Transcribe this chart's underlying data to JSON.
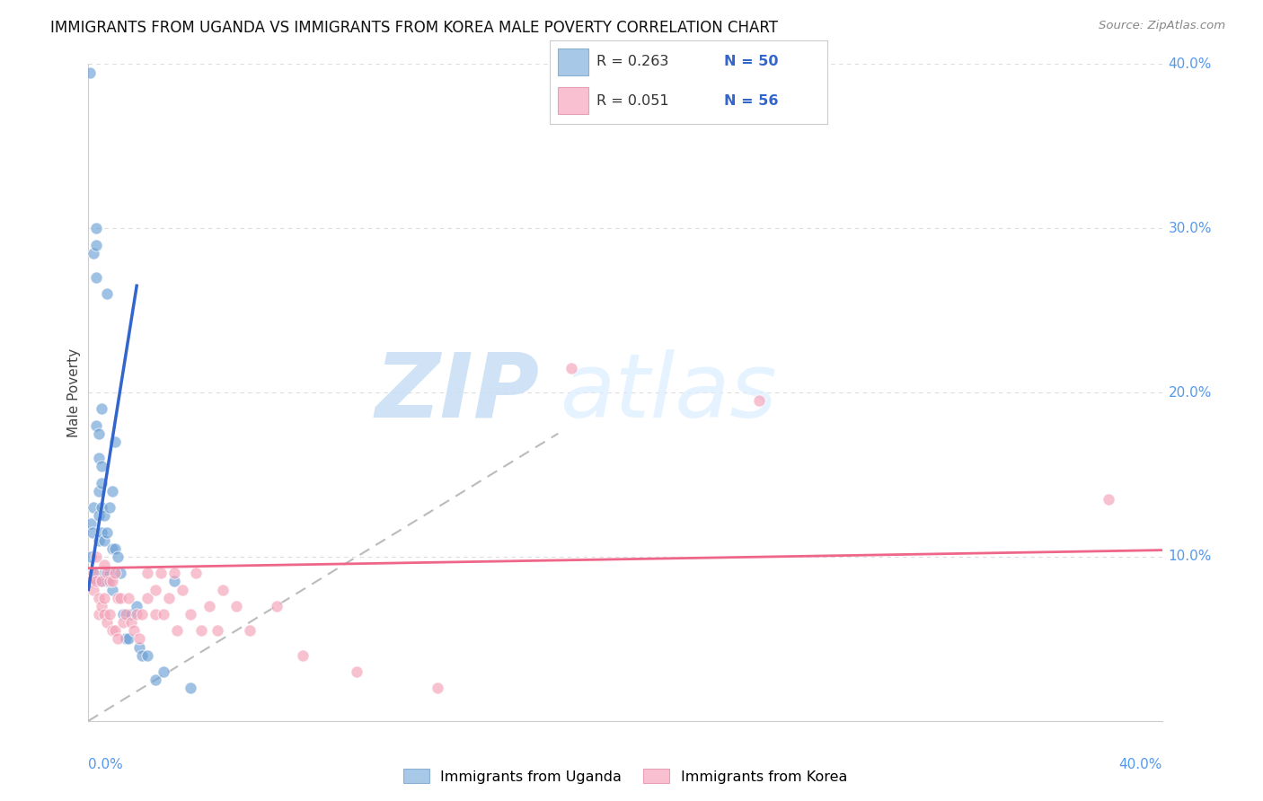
{
  "title": "IMMIGRANTS FROM UGANDA VS IMMIGRANTS FROM KOREA MALE POVERTY CORRELATION CHART",
  "source": "Source: ZipAtlas.com",
  "ylabel": "Male Poverty",
  "uganda_color": "#6ca0d4",
  "korea_color": "#f4a0b8",
  "uganda_line_color": "#3366cc",
  "korea_line_color": "#ee6688",
  "diag_line_color": "#bbbbbb",
  "watermark_zip": "ZIP",
  "watermark_atlas": "atlas",
  "R_uganda": 0.263,
  "N_uganda": 50,
  "R_korea": 0.051,
  "N_korea": 56,
  "xmin": 0.0,
  "xmax": 0.4,
  "ymin": 0.0,
  "ymax": 0.4,
  "background_color": "#ffffff",
  "grid_color": "#dddddd",
  "uganda_x": [
    0.0005,
    0.001,
    0.001,
    0.001,
    0.0015,
    0.002,
    0.002,
    0.002,
    0.003,
    0.003,
    0.003,
    0.003,
    0.004,
    0.004,
    0.004,
    0.004,
    0.004,
    0.005,
    0.005,
    0.005,
    0.005,
    0.005,
    0.005,
    0.006,
    0.006,
    0.006,
    0.007,
    0.007,
    0.007,
    0.008,
    0.008,
    0.009,
    0.009,
    0.009,
    0.01,
    0.01,
    0.011,
    0.012,
    0.013,
    0.014,
    0.015,
    0.016,
    0.018,
    0.019,
    0.02,
    0.022,
    0.025,
    0.028,
    0.032,
    0.038
  ],
  "uganda_y": [
    0.395,
    0.12,
    0.1,
    0.085,
    0.115,
    0.285,
    0.13,
    0.09,
    0.3,
    0.29,
    0.27,
    0.18,
    0.175,
    0.16,
    0.14,
    0.125,
    0.11,
    0.19,
    0.155,
    0.145,
    0.13,
    0.115,
    0.085,
    0.125,
    0.11,
    0.09,
    0.26,
    0.115,
    0.085,
    0.13,
    0.09,
    0.14,
    0.105,
    0.08,
    0.17,
    0.105,
    0.1,
    0.09,
    0.065,
    0.05,
    0.05,
    0.065,
    0.07,
    0.045,
    0.04,
    0.04,
    0.025,
    0.03,
    0.085,
    0.02
  ],
  "korea_x": [
    0.001,
    0.002,
    0.002,
    0.003,
    0.003,
    0.004,
    0.004,
    0.005,
    0.005,
    0.006,
    0.006,
    0.006,
    0.007,
    0.007,
    0.008,
    0.008,
    0.009,
    0.009,
    0.01,
    0.01,
    0.011,
    0.011,
    0.012,
    0.013,
    0.014,
    0.015,
    0.016,
    0.017,
    0.018,
    0.019,
    0.02,
    0.022,
    0.022,
    0.025,
    0.025,
    0.027,
    0.028,
    0.03,
    0.032,
    0.033,
    0.035,
    0.038,
    0.04,
    0.042,
    0.045,
    0.048,
    0.05,
    0.055,
    0.06,
    0.07,
    0.08,
    0.1,
    0.13,
    0.18,
    0.25,
    0.38
  ],
  "korea_y": [
    0.085,
    0.09,
    0.08,
    0.1,
    0.085,
    0.075,
    0.065,
    0.085,
    0.07,
    0.095,
    0.075,
    0.065,
    0.09,
    0.06,
    0.085,
    0.065,
    0.085,
    0.055,
    0.09,
    0.055,
    0.075,
    0.05,
    0.075,
    0.06,
    0.065,
    0.075,
    0.06,
    0.055,
    0.065,
    0.05,
    0.065,
    0.09,
    0.075,
    0.08,
    0.065,
    0.09,
    0.065,
    0.075,
    0.09,
    0.055,
    0.08,
    0.065,
    0.09,
    0.055,
    0.07,
    0.055,
    0.08,
    0.07,
    0.055,
    0.07,
    0.04,
    0.03,
    0.02,
    0.215,
    0.195,
    0.135
  ],
  "uganda_line_x": [
    0.0,
    0.018
  ],
  "uganda_line_y": [
    0.08,
    0.265
  ],
  "korea_line_x": [
    0.0,
    0.4
  ],
  "korea_line_y": [
    0.093,
    0.104
  ],
  "diag_line_x": [
    0.0,
    0.175
  ],
  "diag_line_y": [
    0.0,
    0.175
  ],
  "ytick_vals": [
    0.1,
    0.2,
    0.3,
    0.4
  ],
  "ytick_labels": [
    "10.0%",
    "20.0%",
    "30.0%",
    "40.0%"
  ],
  "xtick_left_label": "0.0%",
  "xtick_right_label": "40.0%",
  "legend_R_color": "#3366cc",
  "legend_N_color": "#3366cc",
  "tick_color": "#5599ee"
}
